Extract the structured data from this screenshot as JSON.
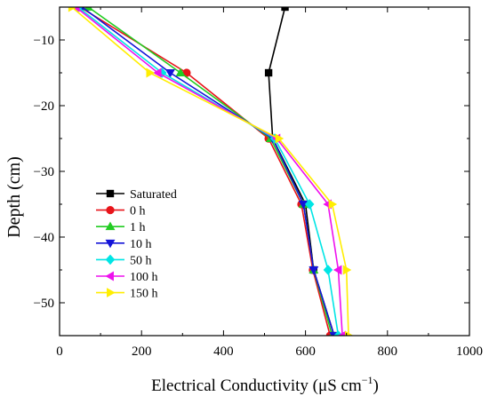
{
  "chart_data": {
    "type": "line",
    "xlabel_main": "Electrical Conductivity (μS cm",
    "xlabel_sup": "−1",
    "xlabel_close": ")",
    "ylabel": "Depth (cm)",
    "xlim": [
      0,
      1000
    ],
    "ylim": [
      -55,
      -5
    ],
    "x_ticks": [
      0,
      200,
      400,
      600,
      800,
      1000
    ],
    "y_ticks": [
      -10,
      -20,
      -30,
      -40,
      -50
    ],
    "x_tick_labels": [
      "0",
      "200",
      "400",
      "600",
      "800",
      "1000"
    ],
    "y_tick_labels": [
      "−10",
      "−20",
      "−30",
      "−40",
      "−50"
    ],
    "grid": false,
    "legend_position": "lower-left",
    "series": [
      {
        "name": "Saturated",
        "color": "#000000",
        "marker": "square",
        "points": [
          [
            550,
            -5
          ],
          [
            510,
            -15
          ],
          [
            520,
            -25
          ],
          [
            600,
            -35
          ],
          [
            620,
            -45
          ],
          [
            670,
            -55
          ]
        ]
      },
      {
        "name": "0 h",
        "color": "#e8141a",
        "marker": "circle",
        "points": [
          [
            50,
            -5
          ],
          [
            310,
            -15
          ],
          [
            510,
            -25
          ],
          [
            590,
            -35
          ],
          [
            618,
            -45
          ],
          [
            660,
            -55
          ]
        ]
      },
      {
        "name": "1 h",
        "color": "#22cc22",
        "marker": "triangle-up",
        "points": [
          [
            70,
            -5
          ],
          [
            295,
            -15
          ],
          [
            515,
            -25
          ],
          [
            595,
            -35
          ],
          [
            620,
            -45
          ],
          [
            665,
            -55
          ]
        ]
      },
      {
        "name": "10 h",
        "color": "#1414d8",
        "marker": "triangle-down",
        "points": [
          [
            55,
            -5
          ],
          [
            270,
            -15
          ],
          [
            520,
            -25
          ],
          [
            595,
            -35
          ],
          [
            620,
            -45
          ],
          [
            670,
            -55
          ]
        ]
      },
      {
        "name": "50 h",
        "color": "#00e5e5",
        "marker": "diamond",
        "points": [
          [
            45,
            -5
          ],
          [
            250,
            -15
          ],
          [
            525,
            -25
          ],
          [
            610,
            -35
          ],
          [
            655,
            -45
          ],
          [
            680,
            -55
          ]
        ]
      },
      {
        "name": "100 h",
        "color": "#ee11ee",
        "marker": "triangle-left",
        "points": [
          [
            40,
            -5
          ],
          [
            240,
            -15
          ],
          [
            530,
            -25
          ],
          [
            655,
            -35
          ],
          [
            680,
            -45
          ],
          [
            690,
            -55
          ]
        ]
      },
      {
        "name": "150 h",
        "color": "#ffee00",
        "marker": "triangle-right",
        "points": [
          [
            30,
            -5
          ],
          [
            220,
            -15
          ],
          [
            535,
            -25
          ],
          [
            665,
            -35
          ],
          [
            700,
            -45
          ],
          [
            705,
            -55
          ]
        ]
      }
    ]
  }
}
